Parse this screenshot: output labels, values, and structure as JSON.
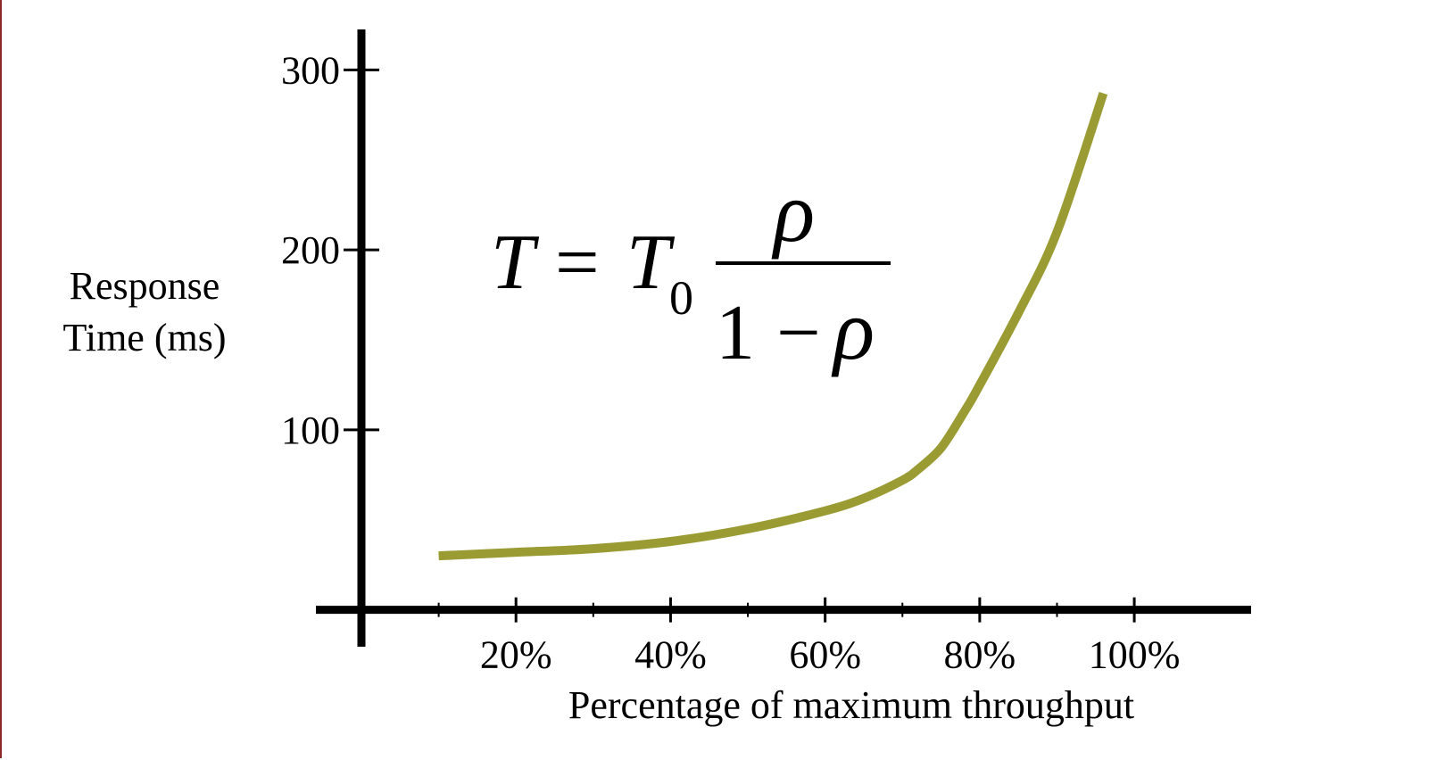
{
  "colors": {
    "curve": "#9a9b33",
    "axis": "#000000",
    "frame_border": "#8b2a2a"
  },
  "formula": {
    "lhs": "T",
    "equals": "=",
    "t0_letter": "T",
    "t0_subscript": "0",
    "numerator": "ρ",
    "denominator_one": "1",
    "denominator_minus": "−",
    "denominator_rho": "ρ"
  },
  "chart_data": {
    "type": "line",
    "title": "",
    "xlabel": "Percentage of maximum throughput",
    "ylabel_lines": [
      "Response",
      "Time (ms)"
    ],
    "xlim": [
      0,
      115
    ],
    "ylim": [
      -18,
      320
    ],
    "x_ticks": [
      20,
      40,
      60,
      80,
      100
    ],
    "x_tick_labels": [
      "20%",
      "40%",
      "60%",
      "80%",
      "100%"
    ],
    "x_minor_ticks": [
      10,
      30,
      50,
      70,
      90
    ],
    "y_ticks": [
      100,
      200,
      300
    ],
    "y_tick_labels": [
      "100",
      "200",
      "300"
    ],
    "grid": false,
    "series": [
      {
        "x": [
          10,
          20,
          30,
          40,
          50,
          60,
          65,
          70,
          72,
          75,
          78,
          80,
          85,
          90,
          96
        ],
        "y": [
          30,
          32,
          34,
          38,
          45,
          55,
          62,
          72,
          78,
          90,
          110,
          125,
          165,
          210,
          287
        ]
      }
    ]
  }
}
